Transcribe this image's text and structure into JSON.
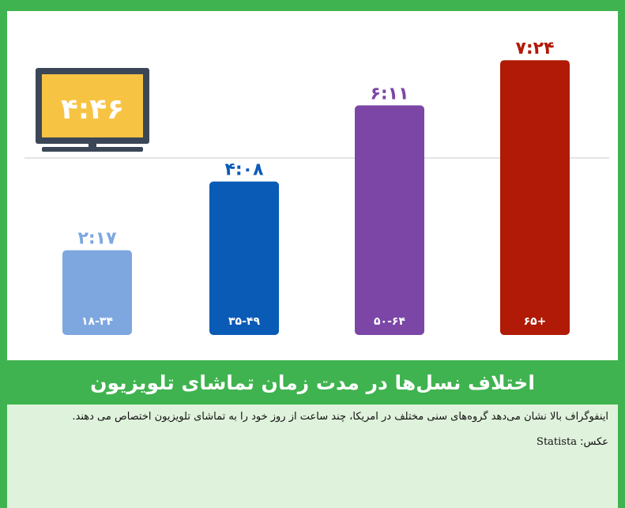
{
  "chart_data": {
    "type": "bar",
    "categories": [
      "۱۸-۳۴",
      "۳۵-۴۹",
      "۵۰-۶۴",
      "۶۵+"
    ],
    "values": [
      2.283,
      4.133,
      6.183,
      7.4
    ],
    "value_labels": [
      "۲:۱۷",
      "۴:۰۸",
      "۶:۱۱",
      "۷:۲۴"
    ],
    "colors": [
      "#7ea7e0",
      "#0a5bb6",
      "#7b46a6",
      "#b01a06"
    ],
    "ylim": [
      0,
      8
    ],
    "reference_line": {
      "value": 4.767,
      "label": "۴:۴۶"
    }
  },
  "header": {
    "title": "اختلاف نسل‌ها در مدت زمان تماشای تلویزیون"
  },
  "caption": {
    "text": "اینفوگراف بالا نشان می‌دهد گروه‌های سنی مختلف در امریکا، چند ساعت از روز خود را به تماشای تلویزیون اختصاص می دهند.",
    "credit_label": "عکس:",
    "credit_source": "Statista"
  }
}
